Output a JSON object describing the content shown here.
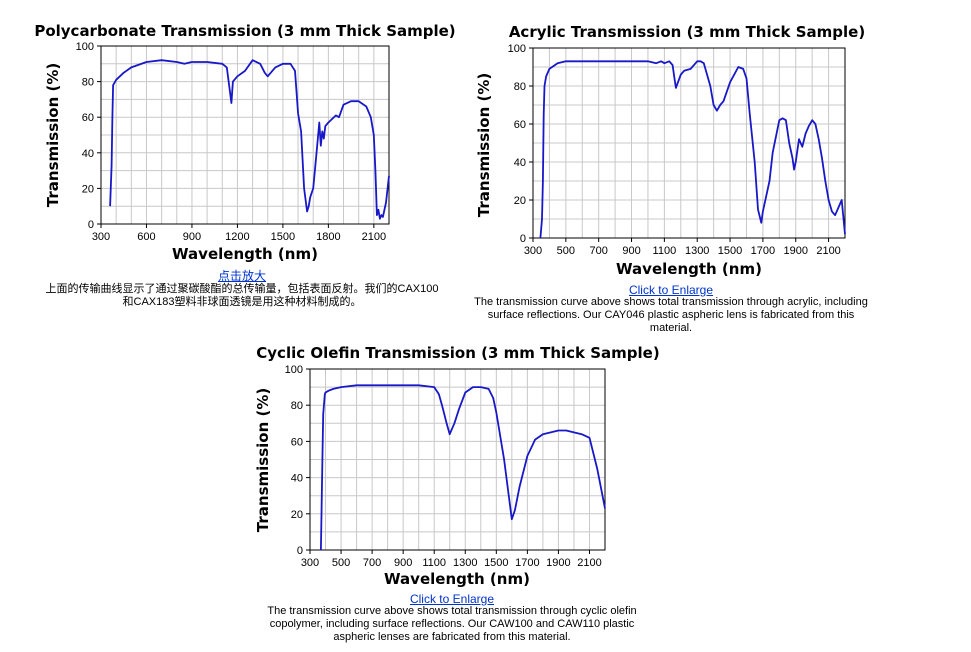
{
  "colors": {
    "curve": "#1818c8",
    "grid": "#c8c8c8",
    "frame": "#000000",
    "link": "#0033cc"
  },
  "panels": [
    {
      "title": "Polycarbonate Transmission (3 mm Thick Sample)",
      "link_text": "点击放大",
      "caption": "上面的传输曲线显示了通过聚碳酸酯的总传输量，包括表面反射。我们的CAX100和CAX183塑料非球面透镜是用这种材料制成的。"
    },
    {
      "title": "Acrylic Transmission (3 mm Thick Sample)",
      "link_text": "Click to Enlarge",
      "caption": "The transmission curve above shows total transmission through acrylic, including surface reflections. Our CAY046 plastic aspheric lens is fabricated from this material."
    },
    {
      "title": "Cyclic Olefin Transmission (3 mm Thick Sample)",
      "link_text": "Click to Enlarge",
      "caption": "The transmission curve above shows total transmission through cyclic olefin copolymer, including surface reflections. Our CAW100 and CAW110 plastic aspheric lenses are fabricated from this material."
    }
  ],
  "chart_data": [
    {
      "type": "line",
      "title": "Polycarbonate Transmission (3 mm Thick Sample)",
      "xlabel": "Wavelength (nm)",
      "ylabel": "Transmission (%)",
      "xlim": [
        300,
        2200
      ],
      "ylim": [
        0,
        100
      ],
      "xticks": [
        300,
        600,
        900,
        1200,
        1500,
        1800,
        2100
      ],
      "yticks": [
        0,
        20,
        40,
        60,
        80,
        100
      ],
      "grid": true,
      "series": [
        {
          "x": [
            360,
            370,
            375,
            380,
            400,
            450,
            500,
            600,
            700,
            800,
            850,
            900,
            1000,
            1100,
            1130,
            1150,
            1160,
            1170,
            1200,
            1250,
            1300,
            1350,
            1380,
            1400,
            1450,
            1500,
            1550,
            1580,
            1600,
            1620,
            1640,
            1660,
            1670,
            1680,
            1700,
            1720,
            1740,
            1750,
            1760,
            1770,
            1780,
            1800,
            1850,
            1870,
            1900,
            1950,
            2000,
            2050,
            2080,
            2100,
            2110,
            2120,
            2130,
            2140,
            2150,
            2160,
            2180,
            2200
          ],
          "y": [
            10,
            33,
            60,
            78,
            81,
            85,
            88,
            91,
            92,
            91,
            90,
            91,
            91,
            90,
            88,
            75,
            68,
            80,
            83,
            86,
            92,
            90,
            85,
            83,
            88,
            90,
            90,
            86,
            62,
            52,
            20,
            7,
            10,
            15,
            20,
            38,
            57,
            44,
            52,
            48,
            55,
            57,
            61,
            60,
            67,
            69,
            69,
            66,
            60,
            50,
            30,
            5,
            8,
            3,
            5,
            4,
            12,
            27
          ]
        }
      ]
    },
    {
      "type": "line",
      "title": "Acrylic Transmission (3 mm Thick Sample)",
      "xlabel": "Wavelength (nm)",
      "ylabel": "Transmission (%)",
      "xlim": [
        300,
        2200
      ],
      "ylim": [
        0,
        100
      ],
      "xticks": [
        300,
        500,
        700,
        900,
        1100,
        1300,
        1500,
        1700,
        1900,
        2100
      ],
      "yticks": [
        0,
        20,
        40,
        60,
        80,
        100
      ],
      "grid": true,
      "series": [
        {
          "x": [
            345,
            355,
            360,
            365,
            370,
            380,
            400,
            450,
            500,
            600,
            700,
            800,
            900,
            1000,
            1050,
            1080,
            1100,
            1130,
            1150,
            1160,
            1170,
            1200,
            1220,
            1260,
            1300,
            1320,
            1340,
            1380,
            1400,
            1420,
            1440,
            1460,
            1500,
            1550,
            1580,
            1600,
            1620,
            1650,
            1670,
            1690,
            1700,
            1720,
            1740,
            1760,
            1800,
            1820,
            1840,
            1860,
            1880,
            1890,
            1900,
            1920,
            1940,
            1960,
            1980,
            2000,
            2020,
            2040,
            2060,
            2080,
            2100,
            2120,
            2140,
            2160,
            2180,
            2200
          ],
          "y": [
            0,
            10,
            30,
            65,
            80,
            85,
            89,
            92,
            93,
            93,
            93,
            93,
            93,
            93,
            92,
            93,
            92,
            93,
            91,
            85,
            79,
            86,
            88,
            89,
            93,
            93,
            92,
            80,
            70,
            67,
            70,
            72,
            82,
            90,
            89,
            84,
            65,
            40,
            15,
            8,
            14,
            22,
            30,
            45,
            62,
            63,
            62,
            50,
            42,
            36,
            40,
            52,
            48,
            55,
            59,
            62,
            60,
            52,
            42,
            30,
            20,
            14,
            12,
            16,
            20,
            2
          ]
        }
      ]
    },
    {
      "type": "line",
      "title": "Cyclic Olefin Transmission (3 mm Thick Sample)",
      "xlabel": "Wavelength (nm)",
      "ylabel": "Transmission (%)",
      "xlim": [
        300,
        2200
      ],
      "ylim": [
        0,
        100
      ],
      "xticks": [
        300,
        500,
        700,
        900,
        1100,
        1300,
        1500,
        1700,
        1900,
        2100
      ],
      "yticks": [
        0,
        20,
        40,
        60,
        80,
        100
      ],
      "grid": true,
      "series": [
        {
          "x": [
            370,
            380,
            385,
            395,
            400,
            420,
            450,
            500,
            600,
            700,
            800,
            900,
            1000,
            1100,
            1130,
            1150,
            1180,
            1200,
            1230,
            1260,
            1300,
            1350,
            1400,
            1450,
            1480,
            1500,
            1550,
            1600,
            1620,
            1650,
            1700,
            1750,
            1800,
            1850,
            1900,
            1950,
            2000,
            2050,
            2100,
            2150,
            2200
          ],
          "y": [
            0,
            50,
            75,
            86,
            87,
            88,
            89,
            90,
            91,
            91,
            91,
            91,
            91,
            90,
            86,
            80,
            70,
            64,
            70,
            78,
            87,
            90,
            90,
            89,
            84,
            76,
            50,
            17,
            22,
            35,
            52,
            61,
            64,
            65,
            66,
            66,
            65,
            64,
            62,
            45,
            23
          ]
        }
      ]
    }
  ]
}
